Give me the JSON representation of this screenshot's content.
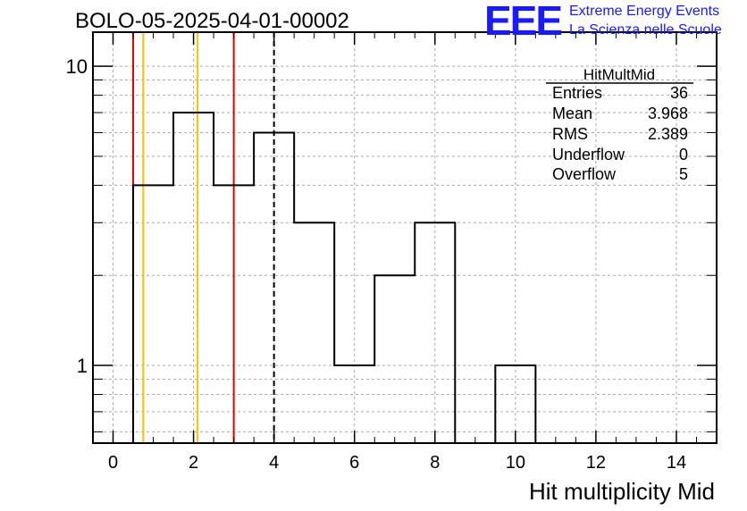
{
  "title": "BOLO-05-2025-04-01-00002",
  "logo": {
    "mark": "EEE",
    "line1": "Extreme Energy Events",
    "line2": "La Scienza nelle Scuole",
    "color": "#1a1aff"
  },
  "stats_box": {
    "name": "HitMultMid",
    "rows": [
      {
        "label": "Entries",
        "value": "36"
      },
      {
        "label": "Mean",
        "value": "3.968"
      },
      {
        "label": "RMS",
        "value": "2.389"
      },
      {
        "label": "Underflow",
        "value": "0"
      },
      {
        "label": "Overflow",
        "value": "5"
      }
    ]
  },
  "chart_data": {
    "type": "bar",
    "histogram": true,
    "xlabel": "Hit multiplicity Mid",
    "ylabel": "",
    "xlim": [
      -0.5,
      15
    ],
    "ylim": [
      0.55,
      13
    ],
    "y_scale": "log",
    "grid": true,
    "bin_edges": [
      0.5,
      1.5,
      2.5,
      3.5,
      4.5,
      5.5,
      6.5,
      7.5,
      8.5,
      9.5,
      10.5
    ],
    "values": [
      4,
      7,
      4,
      6,
      3,
      1,
      2,
      3,
      0,
      1
    ],
    "x_ticks": [
      0,
      2,
      4,
      6,
      8,
      10,
      12,
      14
    ],
    "y_ticks_labeled": [
      1,
      10
    ],
    "vertical_lines": [
      {
        "x": 0.5,
        "color": "#e00000",
        "style": "solid"
      },
      {
        "x": 0.75,
        "color": "#ffc000",
        "style": "solid"
      },
      {
        "x": 2.1,
        "color": "#ffc000",
        "style": "solid"
      },
      {
        "x": 3.0,
        "color": "#e00000",
        "style": "solid"
      },
      {
        "x": 4.0,
        "color": "#000000",
        "style": "dashed"
      }
    ]
  }
}
